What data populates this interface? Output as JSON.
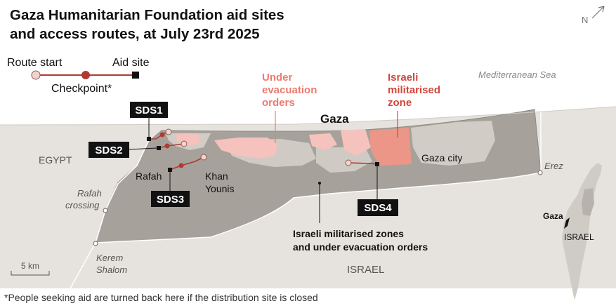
{
  "title_line1": "Gaza Humanitarian Foundation aid sites",
  "title_line2": "and access routes, at July 23rd 2025",
  "legend": {
    "route_start": "Route start",
    "aid_site": "Aid site",
    "checkpoint": "Checkpoint*"
  },
  "compass": "N",
  "labels": {
    "sea": "Mediterranean Sea",
    "evac_line1": "Under",
    "evac_line2": "evacuation",
    "evac_line3": "orders",
    "mil_line1": "Israeli",
    "mil_line2": "militarised",
    "mil_line3": "zone",
    "gaza": "Gaza",
    "gaza_city": "Gaza city",
    "egypt": "EGYPT",
    "israel": "ISRAEL",
    "erez": "Erez",
    "rafah": "Rafah",
    "khan_line1": "Khan",
    "khan_line2": "Younis",
    "rafah_crossing_line1": "Rafah",
    "rafah_crossing_line2": "crossing",
    "kerem_line1": "Kerem",
    "kerem_line2": "Shalom",
    "zones_line1": "Israeli militarised zones",
    "zones_line2": "and under evacuation orders",
    "scale": "5 km",
    "inset_gaza": "Gaza",
    "inset_israel": "ISRAEL"
  },
  "sites": [
    "SDS1",
    "SDS2",
    "SDS3",
    "SDS4"
  ],
  "footnote": "*People seeking aid are turned back here if the distribution site is closed",
  "colors": {
    "background": "#ffffff",
    "sea": "#ffffff",
    "land": "#e6e3de",
    "strip": "#a6a29b",
    "strip_light": "#d6d2cb",
    "evacuation": "#f5c2bd",
    "militarised": "#ec9688",
    "route": "#b03a32",
    "label_red_light": "#ec7b70",
    "label_red_dark": "#d0473b",
    "text": "#111111"
  }
}
